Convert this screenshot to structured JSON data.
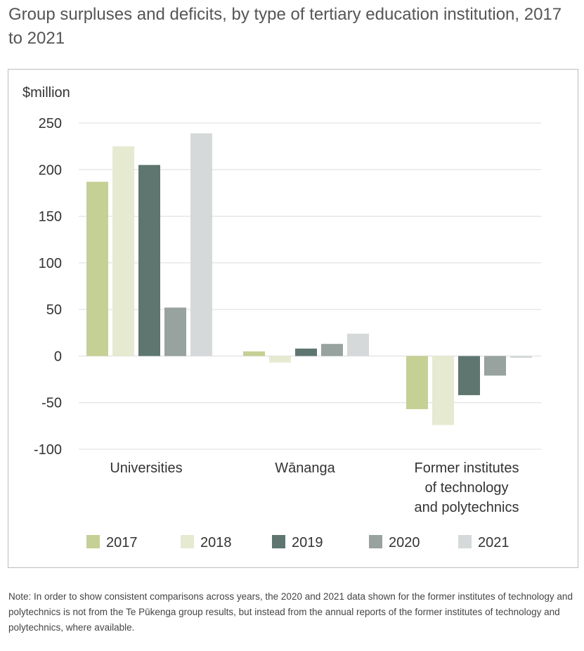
{
  "title": "Group surpluses and deficits, by type of tertiary education institution, 2017 to 2021",
  "note": "Note: In order to show consistent comparisons across years, the 2020 and 2021 data shown for the former institutes of technology and polytechnics is not from the Te Pūkenga group results, but instead from the annual reports of the former institutes of technology and polytechnics, where available.",
  "chart_data": {
    "type": "bar",
    "ylabel": "$million",
    "ylim": [
      -100,
      250
    ],
    "yticks": [
      250,
      200,
      150,
      100,
      50,
      0,
      -50,
      -100
    ],
    "grid": true,
    "legend_position": "bottom",
    "categories": [
      [
        "Universities"
      ],
      [
        "Wānanga"
      ],
      [
        "Former institutes",
        "of technology",
        "and polytechnics"
      ]
    ],
    "series": [
      {
        "name": "2017",
        "color": "#c5d094",
        "values": [
          187,
          5,
          -57
        ]
      },
      {
        "name": "2018",
        "color": "#e6ead1",
        "values": [
          225,
          -7,
          -74
        ]
      },
      {
        "name": "2019",
        "color": "#5f7670",
        "values": [
          205,
          8,
          -42
        ]
      },
      {
        "name": "2020",
        "color": "#98a29e",
        "values": [
          52,
          13,
          -21
        ]
      },
      {
        "name": "2021",
        "color": "#d5d9da",
        "values": [
          239,
          24,
          -2
        ]
      }
    ]
  }
}
